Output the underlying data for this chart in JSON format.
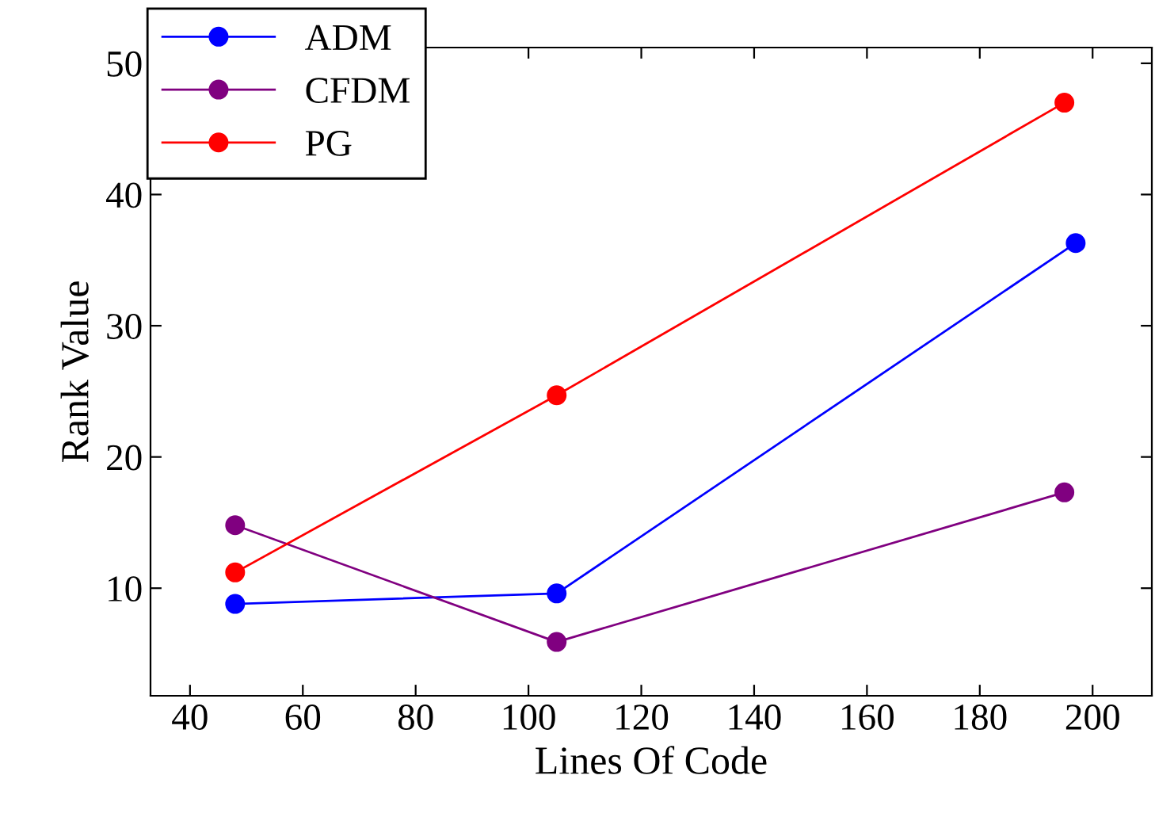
{
  "chart_data": {
    "type": "line",
    "xlabel": "Lines Of Code",
    "ylabel": "Rank Value",
    "xlim": [
      33,
      210.5
    ],
    "ylim": [
      1.8,
      51.2
    ],
    "xticks": [
      40,
      60,
      80,
      100,
      120,
      140,
      160,
      180,
      200
    ],
    "yticks": [
      10,
      20,
      30,
      40,
      50
    ],
    "marker": "circle",
    "legend": "top left",
    "grid": false,
    "series": [
      {
        "name": "ADM",
        "color": "#0000ff",
        "x": [
          48,
          105,
          197
        ],
        "values": [
          8.8,
          9.6,
          36.3
        ]
      },
      {
        "name": "CFDM",
        "color": "#800080",
        "x": [
          48,
          105,
          195
        ],
        "values": [
          14.8,
          5.9,
          17.3
        ]
      },
      {
        "name": "PG",
        "color": "#ff0000",
        "x": [
          48,
          105,
          195
        ],
        "values": [
          11.2,
          24.7,
          47.0
        ]
      }
    ]
  }
}
